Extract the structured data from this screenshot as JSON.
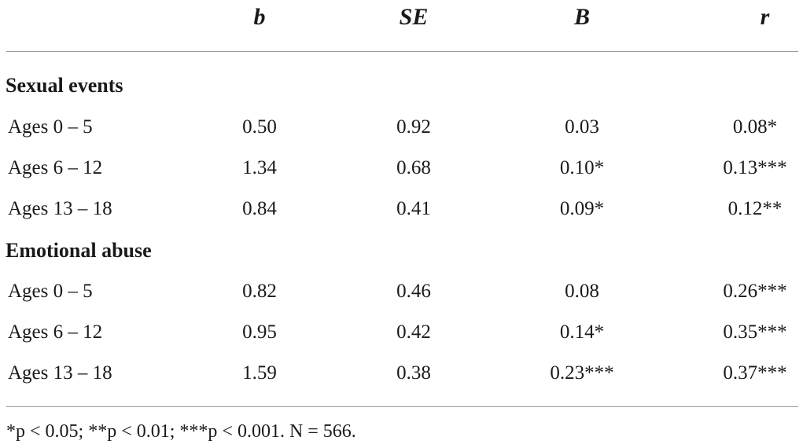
{
  "columns": {
    "b": "b",
    "se": "SE",
    "beta": "B",
    "r": "r"
  },
  "sections": [
    {
      "title": "Sexual events",
      "rows": [
        {
          "label": "Ages 0 – 5",
          "b": "0.50",
          "se": "0.92",
          "beta": "0.03",
          "r": "0.08*"
        },
        {
          "label": "Ages 6 – 12",
          "b": "1.34",
          "se": "0.68",
          "beta": "0.10*",
          "r": "0.13***"
        },
        {
          "label": "Ages 13 – 18",
          "b": "0.84",
          "se": "0.41",
          "beta": "0.09*",
          "r": "0.12**"
        }
      ]
    },
    {
      "title": "Emotional abuse",
      "rows": [
        {
          "label": "Ages 0 – 5",
          "b": "0.82",
          "se": "0.46",
          "beta": "0.08",
          "r": "0.26***"
        },
        {
          "label": "Ages 6 – 12",
          "b": "0.95",
          "se": "0.42",
          "beta": "0.14*",
          "r": "0.35***"
        },
        {
          "label": "Ages 13 – 18",
          "b": "1.59",
          "se": "0.38",
          "beta": "0.23***",
          "r": "0.37***"
        }
      ]
    }
  ],
  "footnote": "*p < 0.05; **p < 0.01; ***p < 0.001. N = 566."
}
